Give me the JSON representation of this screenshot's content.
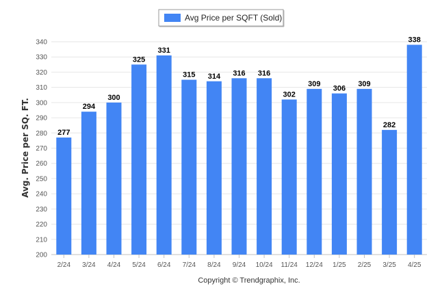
{
  "chart_data": {
    "type": "bar",
    "categories": [
      "2/24",
      "3/24",
      "4/24",
      "5/24",
      "6/24",
      "7/24",
      "8/24",
      "9/24",
      "10/24",
      "11/24",
      "12/24",
      "1/25",
      "2/25",
      "3/25",
      "4/25"
    ],
    "series": [
      {
        "name": "Avg Price per SQFT (Sold)",
        "values": [
          277,
          294,
          300,
          325,
          331,
          315,
          314,
          316,
          316,
          302,
          309,
          306,
          309,
          282,
          338
        ],
        "color": "#4285f4"
      }
    ],
    "title": "",
    "xlabel": "",
    "ylabel": "Avg. Price per SQ. FT.",
    "ylim": [
      200,
      340
    ],
    "yticks": [
      200,
      210,
      220,
      230,
      240,
      250,
      260,
      270,
      280,
      290,
      300,
      310,
      320,
      330,
      340
    ],
    "grid": true,
    "legend_position": "top-center",
    "data_labels": true
  },
  "footer": {
    "copyright": "Copyright © Trendgraphix, Inc."
  }
}
